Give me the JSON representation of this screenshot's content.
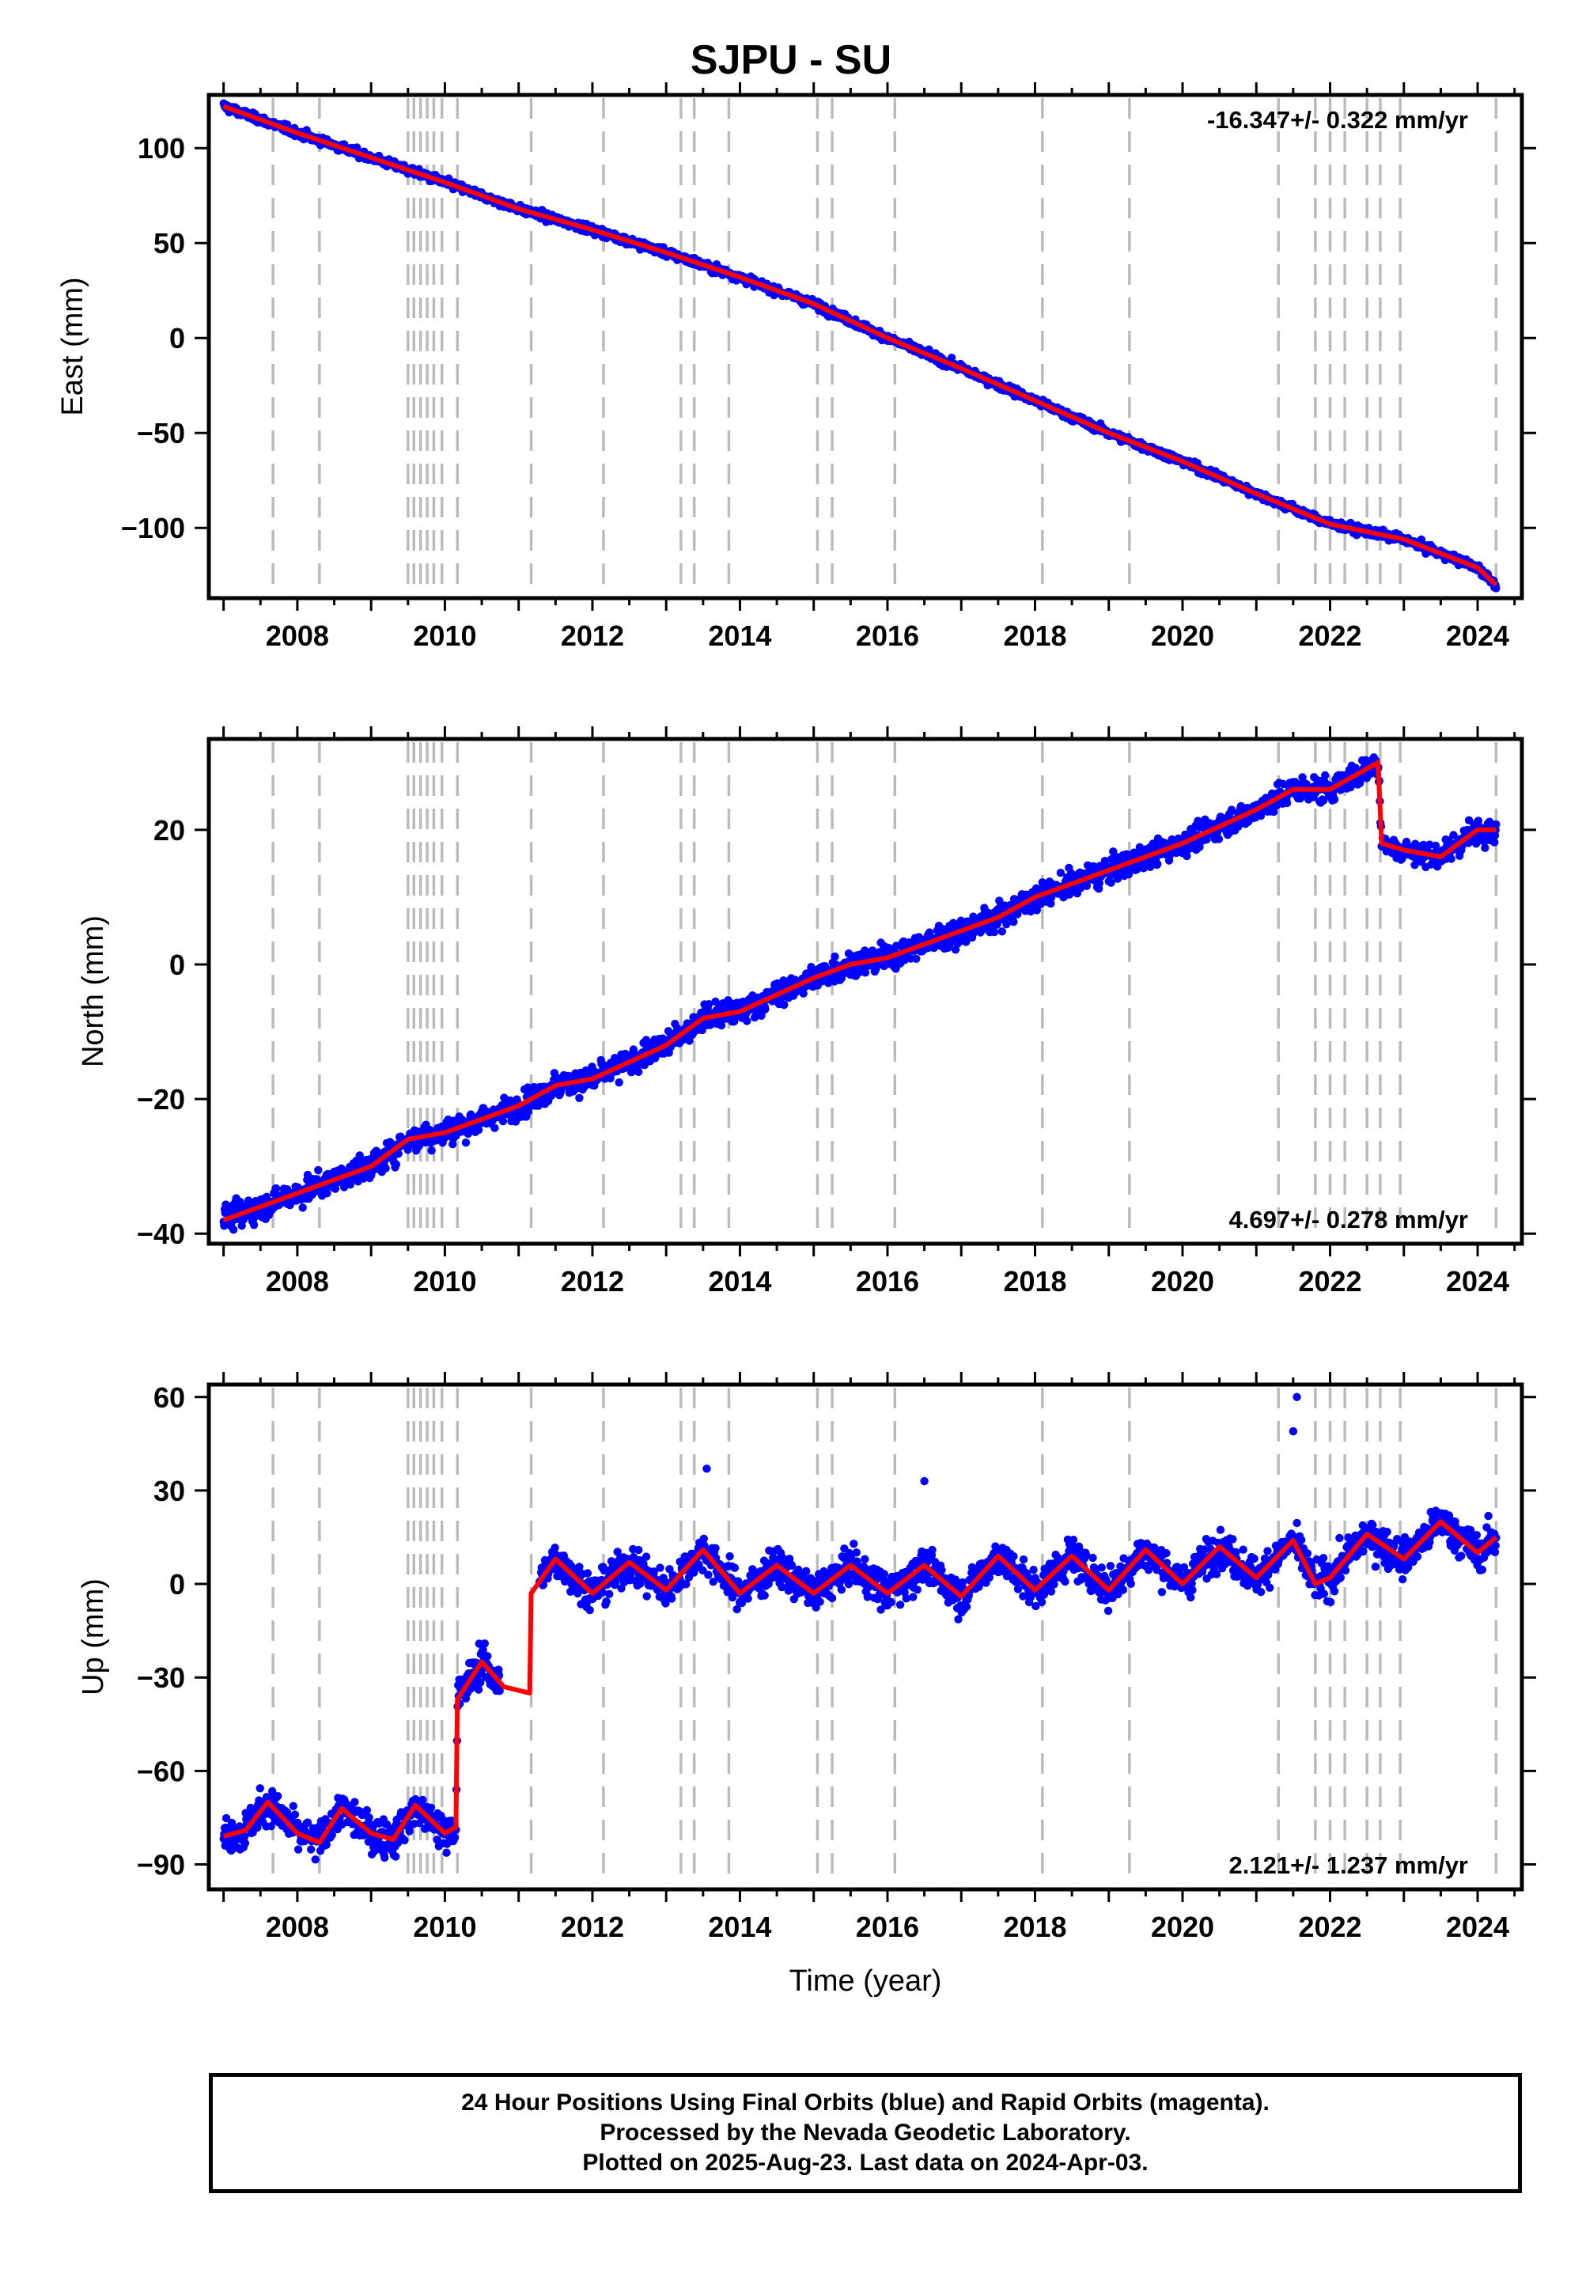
{
  "title": "SJPU - SU",
  "chart_data": [
    {
      "type": "scatter",
      "panel": "east",
      "ylabel": "East (mm)",
      "xlim": [
        2006.8,
        2024.6
      ],
      "ylim": [
        -137,
        128
      ],
      "yticks": [
        -100,
        -50,
        0,
        50,
        100
      ],
      "xticks": [
        2008,
        2010,
        2012,
        2014,
        2016,
        2018,
        2020,
        2022,
        2024
      ],
      "rate": "-16.347+/- 0.322 mm/yr",
      "rate_position": "top-right",
      "noise": 1.6,
      "seasonal_amp": 1.0,
      "series": [
        {
          "name": "daily positions",
          "color": "#0000ff",
          "style": "points"
        },
        {
          "name": "model",
          "color": "#ff0000",
          "style": "line",
          "x": [
            2007.0,
            2008.0,
            2009.0,
            2010.0,
            2011.0,
            2012.0,
            2013.0,
            2014.0,
            2015.0,
            2016.0,
            2017.0,
            2018.0,
            2019.0,
            2020.0,
            2021.0,
            2022.0,
            2023.0,
            2024.0,
            2024.25
          ],
          "y": [
            122,
            108,
            95,
            82,
            68,
            57,
            45,
            32,
            18,
            0,
            -16,
            -33,
            -50,
            -65,
            -82,
            -98,
            -106,
            -121,
            -130
          ]
        }
      ]
    },
    {
      "type": "scatter",
      "panel": "north",
      "ylabel": "North (mm)",
      "xlim": [
        2006.8,
        2024.6
      ],
      "ylim": [
        -41.5,
        33.5
      ],
      "yticks": [
        -40,
        -20,
        0,
        20
      ],
      "xticks": [
        2008,
        2010,
        2012,
        2014,
        2016,
        2018,
        2020,
        2022,
        2024
      ],
      "rate": "4.697+/- 0.278 mm/yr",
      "rate_position": "bottom-right",
      "noise": 1.4,
      "seasonal_amp": 1.2,
      "series": [
        {
          "name": "daily positions",
          "color": "#0000ff",
          "style": "points"
        },
        {
          "name": "model",
          "color": "#ff0000",
          "style": "line",
          "x": [
            2007.0,
            2008.0,
            2009.0,
            2009.5,
            2010.0,
            2011.0,
            2011.5,
            2012.0,
            2013.0,
            2013.5,
            2014.0,
            2015.0,
            2015.5,
            2016.0,
            2017.0,
            2017.5,
            2018.0,
            2019.0,
            2019.5,
            2020.0,
            2021.0,
            2021.5,
            2022.0,
            2022.65,
            2022.7,
            2023.0,
            2023.5,
            2024.0,
            2024.25
          ],
          "y": [
            -38,
            -34,
            -30,
            -26,
            -25,
            -21,
            -18,
            -17,
            -12,
            -8,
            -7,
            -2,
            0,
            1,
            5,
            7,
            10,
            14,
            16,
            18,
            23,
            26,
            26,
            30,
            18,
            17,
            16,
            20,
            20
          ]
        }
      ]
    },
    {
      "type": "scatter",
      "panel": "up",
      "ylabel": "Up (mm)",
      "xlabel": "Time (year)",
      "xlim": [
        2006.8,
        2024.6
      ],
      "ylim": [
        -98,
        64
      ],
      "yticks": [
        -90,
        -60,
        -30,
        0,
        30,
        60
      ],
      "xticks": [
        2008,
        2010,
        2012,
        2014,
        2016,
        2018,
        2020,
        2022,
        2024
      ],
      "rate": "2.121+/- 1.237 mm/yr",
      "rate_position": "bottom-right",
      "noise": 4.5,
      "seasonal_amp": 6.0,
      "data_gap": [
        2010.75,
        2011.28
      ],
      "series": [
        {
          "name": "daily positions",
          "color": "#0000ff",
          "style": "points"
        },
        {
          "name": "model",
          "color": "#ff0000",
          "style": "line",
          "x": [
            2007.0,
            2007.3,
            2007.6,
            2008.0,
            2008.3,
            2008.6,
            2009.0,
            2009.3,
            2009.6,
            2010.0,
            2010.15,
            2010.17,
            2010.5,
            2010.8,
            2011.15,
            2011.17,
            2011.5,
            2012.0,
            2012.5,
            2013.0,
            2013.5,
            2014.0,
            2014.5,
            2015.0,
            2015.5,
            2016.0,
            2016.5,
            2017.0,
            2017.5,
            2018.0,
            2018.5,
            2019.0,
            2019.5,
            2020.0,
            2020.5,
            2021.0,
            2021.5,
            2021.8,
            2022.0,
            2022.5,
            2023.0,
            2023.5,
            2024.0,
            2024.25
          ],
          "y": [
            -81,
            -79,
            -70,
            -80,
            -83,
            -72,
            -80,
            -82,
            -71,
            -80,
            -78,
            -37,
            -25,
            -33,
            -35,
            -3,
            8,
            -3,
            7,
            -2,
            11,
            -3,
            6,
            -3,
            6,
            -3,
            6,
            -4,
            9,
            -2,
            9,
            -2,
            11,
            0,
            12,
            2,
            14,
            0,
            2,
            16,
            8,
            20,
            10,
            15
          ]
        }
      ]
    }
  ],
  "event_lines": [
    2007.67,
    2008.3,
    2009.5,
    2009.58,
    2009.67,
    2009.76,
    2009.85,
    2009.96,
    2010.17,
    2011.17,
    2012.15,
    2013.2,
    2013.38,
    2013.85,
    2015.05,
    2015.25,
    2016.1,
    2018.1,
    2019.28,
    2021.3,
    2021.8,
    2022.0,
    2022.2,
    2022.5,
    2022.68,
    2022.95,
    2024.25
  ],
  "footer": {
    "line1": "24 Hour Positions Using Final Orbits (blue) and Rapid Orbits (magenta).",
    "line2": "Processed by the Nevada Geodetic Laboratory.",
    "line3": "Plotted on 2025-Aug-23. Last data on 2024-Apr-03."
  },
  "colors": {
    "points": "#0000ff",
    "model": "#ff0000",
    "event_lines": "#bbbbbb"
  }
}
